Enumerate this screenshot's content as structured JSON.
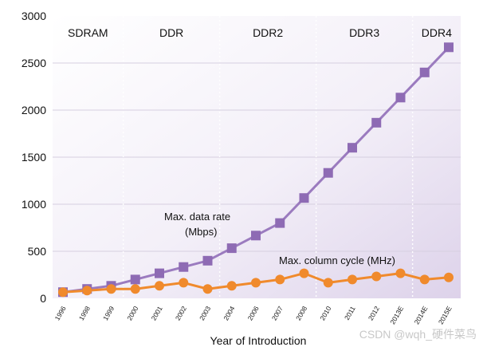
{
  "chart_data": {
    "type": "line",
    "xlabel": "Year of Introduction",
    "ylabel": "",
    "ylim": [
      0,
      3000
    ],
    "y_ticks": [
      0,
      500,
      1000,
      1500,
      2000,
      2500,
      3000
    ],
    "categories": [
      "1996",
      "1998",
      "1999",
      "2000",
      "2001",
      "2002",
      "2003",
      "2004",
      "2006",
      "2007",
      "2008",
      "2010",
      "2011",
      "2012",
      "2013E",
      "2014E",
      "2015E"
    ],
    "eras": [
      {
        "label": "SDRAM",
        "start": 0,
        "end": 3
      },
      {
        "label": "DDR",
        "start": 3,
        "end": 7
      },
      {
        "label": "DDR2",
        "start": 7,
        "end": 11
      },
      {
        "label": "DDR3",
        "start": 11,
        "end": 15
      },
      {
        "label": "DDR4",
        "start": 15,
        "end": 17
      }
    ],
    "series": [
      {
        "name": "Max. data rate (Mbps)",
        "label_lines": [
          "Max. data rate",
          "(Mbps)"
        ],
        "color": "#9b7bbf",
        "marker_color": "#8e6bb4",
        "marker": "square",
        "values": [
          66,
          100,
          133,
          200,
          266,
          333,
          400,
          533,
          667,
          800,
          1066,
          1333,
          1600,
          1866,
          2133,
          2400,
          2667
        ]
      },
      {
        "name": "Max. column cycle (MHz)",
        "label_lines": [
          "Max. column cycle (MHz)"
        ],
        "color": "#f08a2c",
        "marker_color": "#f08a2c",
        "marker": "circle",
        "values": [
          66,
          83,
          100,
          100,
          133,
          166,
          100,
          133,
          166,
          200,
          266,
          166,
          200,
          233,
          266,
          200,
          222
        ]
      }
    ]
  },
  "watermark": "CSDN @wqh_硬件菜鸟"
}
